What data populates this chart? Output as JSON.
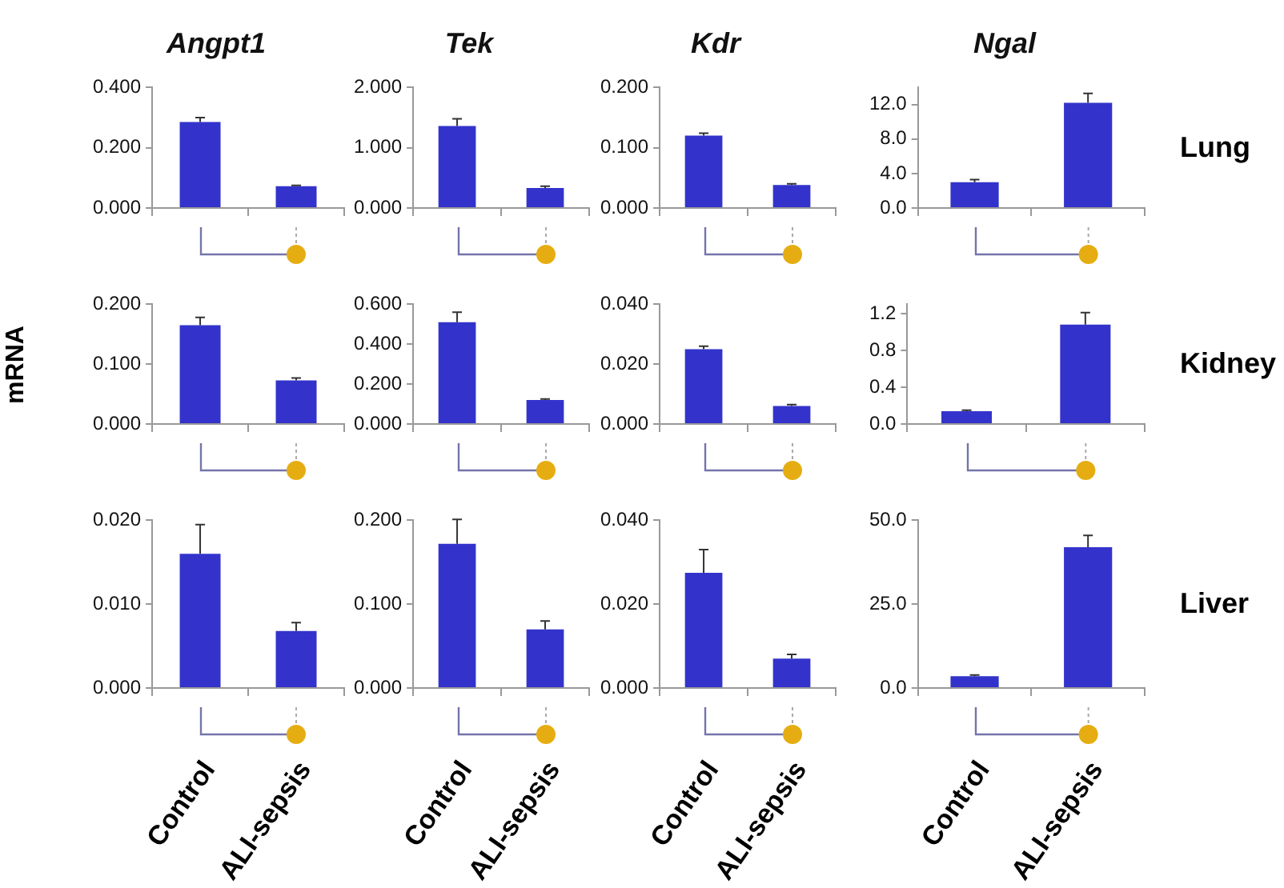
{
  "chart_data": [
    {
      "type": "bar",
      "title": "Angpt1",
      "categories": [
        null,
        null
      ],
      "values": [
        0.285,
        0.072
      ],
      "color": "#3333cc",
      "errors": [
        [
          0.285,
          0.3
        ],
        [
          0.072,
          0.075
        ]
      ],
      "ylim": [
        0,
        0.4
      ],
      "yticks": [
        {
          "value": 0,
          "label": "0.000"
        },
        {
          "value": 0.2,
          "label": "0.200"
        },
        {
          "value": 0.4,
          "label": "0.400"
        }
      ],
      "tick_labels": "y"
    },
    {
      "type": "bar",
      "title": "Tek",
      "categories": [
        null,
        null
      ],
      "values": [
        1.36,
        0.33
      ],
      "color": "#3333cc",
      "errors": [
        [
          1.36,
          1.48
        ],
        [
          0.33,
          0.36
        ]
      ],
      "ylim": [
        0,
        2
      ],
      "yticks": [
        {
          "value": 0,
          "label": "0.000"
        },
        {
          "value": 1,
          "label": "1.000"
        },
        {
          "value": 2,
          "label": "2.000"
        }
      ],
      "tick_labels": "y"
    },
    {
      "type": "bar",
      "title": "Kdr",
      "categories": [
        null,
        null
      ],
      "values": [
        0.12,
        0.038
      ],
      "color": "#3333cc",
      "errors": [
        [
          0.12,
          0.124
        ],
        [
          0.038,
          0.04
        ]
      ],
      "ylim": [
        0,
        0.2
      ],
      "yticks": [
        {
          "value": 0,
          "label": "0.000"
        },
        {
          "value": 0.1,
          "label": "0.100"
        },
        {
          "value": 0.2,
          "label": "0.200"
        }
      ],
      "tick_labels": "y"
    },
    {
      "type": "bar",
      "title": "Ngal",
      "y2label": "Lung",
      "categories": [
        null,
        null
      ],
      "values": [
        3.0,
        12.2
      ],
      "color": "#3333cc",
      "errors": [
        [
          3.0,
          3.3
        ],
        [
          12.2,
          13.3
        ]
      ],
      "ylim": [
        0,
        14
      ],
      "yticks": [
        {
          "value": 0,
          "label": "0.0"
        },
        {
          "value": 4,
          "label": "4.0"
        },
        {
          "value": 8,
          "label": "8.0"
        },
        {
          "value": 12,
          "label": "12.0"
        }
      ],
      "tick_labels": "y"
    },
    {
      "type": "bar",
      "ylabel": "mRNA",
      "categories": [
        null,
        null
      ],
      "values": [
        0.165,
        0.073
      ],
      "color": "#3333cc",
      "errors": [
        [
          0.165,
          0.178
        ],
        [
          0.073,
          0.077
        ]
      ],
      "ylim": [
        0,
        0.2
      ],
      "yticks": [
        {
          "value": 0,
          "label": "0.000"
        },
        {
          "value": 0.1,
          "label": "0.100"
        },
        {
          "value": 0.2,
          "label": "0.200"
        }
      ],
      "tick_labels": "y"
    },
    {
      "type": "bar",
      "categories": [
        null,
        null
      ],
      "values": [
        0.51,
        0.12
      ],
      "color": "#3333cc",
      "errors": [
        [
          0.51,
          0.56
        ],
        [
          0.12,
          0.125
        ]
      ],
      "ylim": [
        0,
        0.6
      ],
      "yticks": [
        {
          "value": 0,
          "label": "0.000"
        },
        {
          "value": 0.2,
          "label": "0.200"
        },
        {
          "value": 0.4,
          "label": "0.400"
        },
        {
          "value": 0.6,
          "label": "0.600"
        }
      ],
      "tick_labels": "y"
    },
    {
      "type": "bar",
      "categories": [
        null,
        null
      ],
      "values": [
        0.025,
        0.006
      ],
      "color": "#3333cc",
      "errors": [
        [
          0.025,
          0.026
        ],
        [
          0.006,
          0.0065
        ]
      ],
      "ylim": [
        0,
        0.04
      ],
      "yticks": [
        {
          "value": 0,
          "label": "0.000"
        },
        {
          "value": 0.02,
          "label": "0.020"
        },
        {
          "value": 0.04,
          "label": "0.040"
        }
      ],
      "tick_labels": "y"
    },
    {
      "type": "bar",
      "y2label": "Kidney",
      "categories": [
        null,
        null
      ],
      "values": [
        0.14,
        1.08
      ],
      "color": "#3333cc",
      "errors": [
        [
          0.14,
          0.15
        ],
        [
          1.08,
          1.21
        ]
      ],
      "ylim": [
        0,
        1.3
      ],
      "yticks": [
        {
          "value": 0,
          "label": "0.0"
        },
        {
          "value": 0.4,
          "label": "0.4"
        },
        {
          "value": 0.8,
          "label": "0.8"
        },
        {
          "value": 1.2,
          "label": "1.2"
        }
      ],
      "tick_labels": "y"
    },
    {
      "type": "bar",
      "categories": [
        "Control",
        "ALI-sepsis"
      ],
      "values": [
        0.016,
        0.0068
      ],
      "color": "#3333cc",
      "errors": [
        [
          0.016,
          0.0195
        ],
        [
          0.0068,
          0.0078
        ]
      ],
      "ylim": [
        0,
        0.02
      ],
      "yticks": [
        {
          "value": 0,
          "label": "0.000"
        },
        {
          "value": 0.01,
          "label": "0.010"
        },
        {
          "value": 0.02,
          "label": "0.020"
        }
      ]
    },
    {
      "type": "bar",
      "categories": [
        "Control",
        "ALI-sepsis"
      ],
      "values": [
        0.172,
        0.07
      ],
      "color": "#3333cc",
      "errors": [
        [
          0.172,
          0.201
        ],
        [
          0.07,
          0.08
        ]
      ],
      "ylim": [
        0,
        0.2
      ],
      "yticks": [
        {
          "value": 0,
          "label": "0.000"
        },
        {
          "value": 0.1,
          "label": "0.100"
        },
        {
          "value": 0.2,
          "label": "0.200"
        }
      ]
    },
    {
      "type": "bar",
      "categories": [
        "Control",
        "ALI-sepsis"
      ],
      "values": [
        0.0275,
        0.007
      ],
      "color": "#3333cc",
      "errors": [
        [
          0.0275,
          0.033
        ],
        [
          0.007,
          0.008
        ]
      ],
      "ylim": [
        0,
        0.04
      ],
      "yticks": [
        {
          "value": 0,
          "label": "0.000"
        },
        {
          "value": 0.02,
          "label": "0.020"
        },
        {
          "value": 0.04,
          "label": "0.040"
        }
      ]
    },
    {
      "type": "bar",
      "y2label": "Liver",
      "categories": [
        "Control",
        "ALI-sepsis"
      ],
      "values": [
        3.5,
        42
      ],
      "color": "#3333cc",
      "errors": [
        [
          3.5,
          3.9
        ],
        [
          42,
          45.5
        ]
      ],
      "ylim": [
        0,
        50
      ],
      "yticks": [
        {
          "value": 0,
          "label": "0.0"
        },
        {
          "value": 25,
          "label": "25.0"
        },
        {
          "value": 50,
          "label": "50.0"
        }
      ]
    }
  ]
}
